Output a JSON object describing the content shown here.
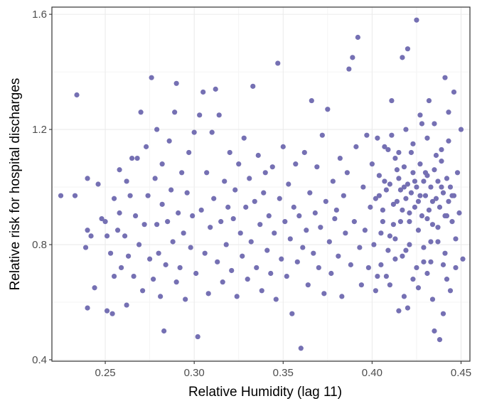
{
  "chart_data": {
    "type": "scatter",
    "xlabel": "Relative Humidity (lag 11)",
    "ylabel": "Relative risk for hospital discharges",
    "xlim": [
      0.22,
      0.455
    ],
    "ylim": [
      0.395,
      1.625
    ],
    "x_ticks": [
      0.25,
      0.3,
      0.35,
      0.4,
      0.45
    ],
    "x_tick_labels": [
      "0.25",
      "0.30",
      "0.35",
      "0.40",
      "0.45"
    ],
    "y_ticks": [
      0.4,
      0.8,
      1.2,
      1.6
    ],
    "y_tick_labels": [
      "0.4",
      "0.8",
      "1.2",
      "1.6"
    ],
    "grid": true,
    "point_color": "#7570b3",
    "points": [
      [
        0.225,
        0.97
      ],
      [
        0.233,
        0.97
      ],
      [
        0.234,
        1.32
      ],
      [
        0.239,
        0.79
      ],
      [
        0.24,
        1.03
      ],
      [
        0.24,
        0.85
      ],
      [
        0.24,
        0.58
      ],
      [
        0.242,
        0.83
      ],
      [
        0.244,
        0.65
      ],
      [
        0.246,
        1.01
      ],
      [
        0.248,
        0.89
      ],
      [
        0.25,
        0.88
      ],
      [
        0.251,
        0.83
      ],
      [
        0.251,
        0.57
      ],
      [
        0.253,
        0.77
      ],
      [
        0.254,
        0.56
      ],
      [
        0.255,
        0.69
      ],
      [
        0.255,
        0.96
      ],
      [
        0.257,
        0.85
      ],
      [
        0.258,
        1.06
      ],
      [
        0.258,
        0.91
      ],
      [
        0.259,
        0.72
      ],
      [
        0.261,
        0.83
      ],
      [
        0.262,
        1.02
      ],
      [
        0.262,
        0.59
      ],
      [
        0.263,
        0.76
      ],
      [
        0.264,
        0.97
      ],
      [
        0.265,
        1.1
      ],
      [
        0.266,
        0.69
      ],
      [
        0.267,
        0.9
      ],
      [
        0.268,
        1.1
      ],
      [
        0.269,
        0.8
      ],
      [
        0.27,
        1.26
      ],
      [
        0.271,
        0.64
      ],
      [
        0.272,
        0.87
      ],
      [
        0.273,
        1.14
      ],
      [
        0.274,
        0.97
      ],
      [
        0.275,
        0.75
      ],
      [
        0.276,
        1.38
      ],
      [
        0.277,
        0.68
      ],
      [
        0.278,
        1.03
      ],
      [
        0.279,
        0.87
      ],
      [
        0.279,
        1.2
      ],
      [
        0.28,
        0.77
      ],
      [
        0.281,
        0.62
      ],
      [
        0.282,
        0.94
      ],
      [
        0.282,
        1.08
      ],
      [
        0.283,
        0.5
      ],
      [
        0.284,
        0.73
      ],
      [
        0.285,
        0.88
      ],
      [
        0.286,
        1.16
      ],
      [
        0.287,
        0.99
      ],
      [
        0.288,
        0.81
      ],
      [
        0.289,
        1.26
      ],
      [
        0.29,
        0.67
      ],
      [
        0.29,
        1.36
      ],
      [
        0.291,
        0.91
      ],
      [
        0.292,
        0.72
      ],
      [
        0.293,
        1.05
      ],
      [
        0.294,
        0.84
      ],
      [
        0.295,
        0.61
      ],
      [
        0.296,
        0.98
      ],
      [
        0.297,
        1.12
      ],
      [
        0.298,
        0.79
      ],
      [
        0.299,
        0.9
      ],
      [
        0.3,
        1.19
      ],
      [
        0.301,
        0.7
      ],
      [
        0.302,
        0.48
      ],
      [
        0.303,
        1.25
      ],
      [
        0.304,
        0.92
      ],
      [
        0.305,
        1.33
      ],
      [
        0.306,
        0.77
      ],
      [
        0.307,
        1.05
      ],
      [
        0.308,
        0.63
      ],
      [
        0.309,
        0.86
      ],
      [
        0.31,
        1.19
      ],
      [
        0.311,
        0.96
      ],
      [
        0.312,
        1.34
      ],
      [
        0.313,
        0.74
      ],
      [
        0.314,
        1.25
      ],
      [
        0.315,
        0.88
      ],
      [
        0.316,
        0.67
      ],
      [
        0.317,
        1.02
      ],
      [
        0.318,
        0.8
      ],
      [
        0.319,
        0.93
      ],
      [
        0.32,
        1.12
      ],
      [
        0.321,
        0.71
      ],
      [
        0.322,
        0.89
      ],
      [
        0.323,
        0.99
      ],
      [
        0.324,
        0.62
      ],
      [
        0.325,
        1.08
      ],
      [
        0.326,
        0.84
      ],
      [
        0.327,
        0.76
      ],
      [
        0.328,
        1.17
      ],
      [
        0.329,
        0.93
      ],
      [
        0.33,
        0.68
      ],
      [
        0.331,
        1.03
      ],
      [
        0.332,
        0.81
      ],
      [
        0.333,
        1.35
      ],
      [
        0.334,
        0.95
      ],
      [
        0.335,
        0.72
      ],
      [
        0.336,
        1.11
      ],
      [
        0.337,
        0.87
      ],
      [
        0.338,
        0.64
      ],
      [
        0.339,
        0.98
      ],
      [
        0.34,
        1.05
      ],
      [
        0.341,
        0.78
      ],
      [
        0.342,
        0.9
      ],
      [
        0.343,
        0.7
      ],
      [
        0.344,
        1.07
      ],
      [
        0.345,
        0.84
      ],
      [
        0.346,
        0.61
      ],
      [
        0.347,
        1.43
      ],
      [
        0.348,
        0.96
      ],
      [
        0.349,
        0.75
      ],
      [
        0.35,
        1.14
      ],
      [
        0.351,
        0.88
      ],
      [
        0.352,
        0.69
      ],
      [
        0.353,
        1.01
      ],
      [
        0.354,
        0.82
      ],
      [
        0.355,
        0.56
      ],
      [
        0.356,
        0.93
      ],
      [
        0.357,
        1.08
      ],
      [
        0.358,
        0.74
      ],
      [
        0.359,
        0.9
      ],
      [
        0.36,
        0.44
      ],
      [
        0.361,
        0.79
      ],
      [
        0.362,
        1.12
      ],
      [
        0.363,
        0.85
      ],
      [
        0.364,
        0.66
      ],
      [
        0.365,
        0.98
      ],
      [
        0.366,
        1.3
      ],
      [
        0.367,
        0.77
      ],
      [
        0.368,
        0.91
      ],
      [
        0.369,
        1.07
      ],
      [
        0.37,
        0.72
      ],
      [
        0.371,
        0.86
      ],
      [
        0.372,
        1.18
      ],
      [
        0.373,
        0.63
      ],
      [
        0.374,
        0.95
      ],
      [
        0.375,
        1.27
      ],
      [
        0.376,
        0.81
      ],
      [
        0.377,
        0.7
      ],
      [
        0.378,
        1.02
      ],
      [
        0.379,
        0.89
      ],
      [
        0.38,
        0.92
      ],
      [
        0.381,
        0.76
      ],
      [
        0.382,
        1.1
      ],
      [
        0.383,
        0.62
      ],
      [
        0.384,
        0.97
      ],
      [
        0.385,
        0.84
      ],
      [
        0.386,
        1.05
      ],
      [
        0.387,
        1.41
      ],
      [
        0.388,
        0.73
      ],
      [
        0.389,
        1.45
      ],
      [
        0.39,
        0.88
      ],
      [
        0.391,
        1.14
      ],
      [
        0.392,
        1.52
      ],
      [
        0.393,
        0.79
      ],
      [
        0.394,
        0.66
      ],
      [
        0.395,
        1.0
      ],
      [
        0.396,
        0.85
      ],
      [
        0.397,
        1.18
      ],
      [
        0.398,
        0.72
      ],
      [
        0.399,
        0.93
      ],
      [
        0.4,
        1.08
      ],
      [
        0.401,
        0.8
      ],
      [
        0.402,
        0.64
      ],
      [
        0.403,
        1.17
      ],
      [
        0.404,
        0.97
      ],
      [
        0.405,
        0.73
      ],
      [
        0.406,
        0.88
      ],
      [
        0.407,
        1.02
      ],
      [
        0.408,
        0.69
      ],
      [
        0.409,
        1.13
      ],
      [
        0.41,
        0.83
      ],
      [
        0.411,
        1.3
      ],
      [
        0.412,
        0.94
      ],
      [
        0.413,
        0.75
      ],
      [
        0.414,
        1.06
      ],
      [
        0.415,
        0.57
      ],
      [
        0.416,
        0.88
      ],
      [
        0.417,
        1.45
      ],
      [
        0.418,
        1.0
      ],
      [
        0.419,
        0.78
      ],
      [
        0.42,
        1.48
      ],
      [
        0.421,
        0.91
      ],
      [
        0.422,
        1.12
      ],
      [
        0.423,
        0.68
      ],
      [
        0.424,
        1.02
      ],
      [
        0.425,
        1.58
      ],
      [
        0.426,
        0.85
      ],
      [
        0.427,
        0.97
      ],
      [
        0.428,
        1.22
      ],
      [
        0.429,
        0.74
      ],
      [
        0.43,
        1.05
      ],
      [
        0.431,
        0.89
      ],
      [
        0.432,
        1.3
      ],
      [
        0.433,
        0.81
      ],
      [
        0.434,
        0.95
      ],
      [
        0.435,
        0.5
      ],
      [
        0.436,
        1.11
      ],
      [
        0.437,
        0.86
      ],
      [
        0.438,
        0.47
      ],
      [
        0.439,
        1.0
      ],
      [
        0.44,
        0.73
      ],
      [
        0.441,
        1.38
      ],
      [
        0.442,
        0.9
      ],
      [
        0.443,
        1.16
      ],
      [
        0.444,
        0.64
      ],
      [
        0.445,
        0.97
      ],
      [
        0.446,
        1.33
      ],
      [
        0.447,
        0.82
      ],
      [
        0.448,
        1.05
      ],
      [
        0.449,
        0.91
      ],
      [
        0.45,
        1.2
      ],
      [
        0.451,
        0.75
      ],
      [
        0.402,
        0.96
      ],
      [
        0.404,
        1.04
      ],
      [
        0.406,
        0.92
      ],
      [
        0.408,
        0.99
      ],
      [
        0.41,
        1.01
      ],
      [
        0.412,
        0.87
      ],
      [
        0.413,
        1.1
      ],
      [
        0.414,
        0.95
      ],
      [
        0.415,
        1.03
      ],
      [
        0.416,
        0.99
      ],
      [
        0.417,
        0.92
      ],
      [
        0.418,
        1.07
      ],
      [
        0.419,
        0.96
      ],
      [
        0.42,
        1.01
      ],
      [
        0.421,
        0.88
      ],
      [
        0.422,
        0.98
      ],
      [
        0.423,
        1.05
      ],
      [
        0.424,
        0.93
      ],
      [
        0.425,
        1.0
      ],
      [
        0.426,
        0.95
      ],
      [
        0.427,
        1.08
      ],
      [
        0.428,
        0.9
      ],
      [
        0.429,
        1.02
      ],
      [
        0.43,
        0.97
      ],
      [
        0.431,
        1.04
      ],
      [
        0.432,
        0.92
      ],
      [
        0.433,
        1.0
      ],
      [
        0.434,
        0.87
      ],
      [
        0.435,
        1.06
      ],
      [
        0.436,
        0.96
      ],
      [
        0.437,
        1.02
      ],
      [
        0.438,
        0.93
      ],
      [
        0.439,
        1.09
      ],
      [
        0.44,
        0.98
      ],
      [
        0.441,
        0.9
      ],
      [
        0.442,
        1.03
      ],
      [
        0.443,
        0.95
      ],
      [
        0.444,
        1.0
      ],
      [
        0.445,
        0.88
      ],
      [
        0.446,
        0.97
      ],
      [
        0.405,
        0.84
      ],
      [
        0.409,
        0.78
      ],
      [
        0.413,
        0.82
      ],
      [
        0.417,
        0.76
      ],
      [
        0.421,
        0.8
      ],
      [
        0.425,
        0.72
      ],
      [
        0.429,
        0.79
      ],
      [
        0.433,
        0.74
      ],
      [
        0.437,
        0.81
      ],
      [
        0.441,
        0.77
      ],
      [
        0.407,
        1.14
      ],
      [
        0.411,
        1.18
      ],
      [
        0.415,
        1.12
      ],
      [
        0.419,
        1.2
      ],
      [
        0.423,
        1.15
      ],
      [
        0.427,
        1.25
      ],
      [
        0.431,
        1.17
      ],
      [
        0.435,
        1.22
      ],
      [
        0.439,
        1.13
      ],
      [
        0.443,
        1.26
      ],
      [
        0.403,
        0.69
      ],
      [
        0.41,
        0.66
      ],
      [
        0.418,
        0.62
      ],
      [
        0.426,
        0.65
      ],
      [
        0.434,
        0.61
      ],
      [
        0.442,
        0.68
      ],
      [
        0.42,
        0.58
      ],
      [
        0.431,
        0.7
      ],
      [
        0.44,
        0.56
      ],
      [
        0.447,
        0.72
      ]
    ]
  }
}
